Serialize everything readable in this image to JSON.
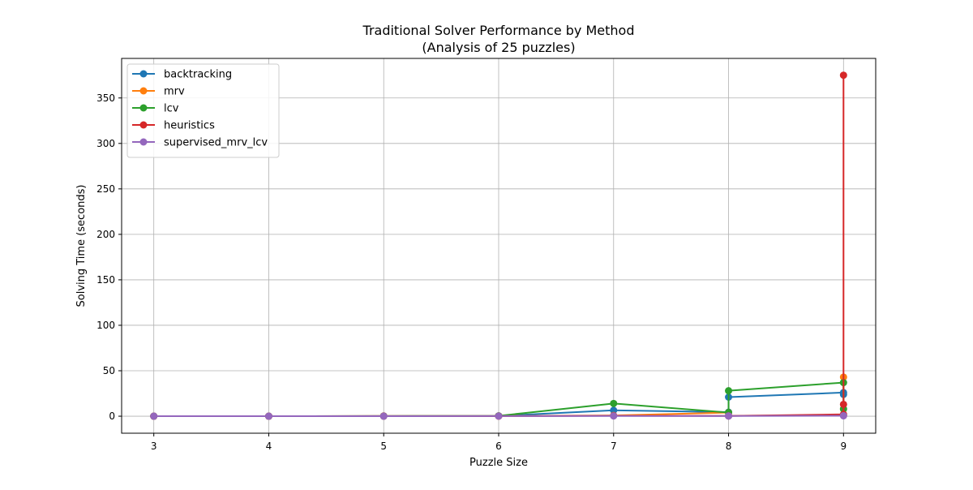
{
  "chart_data": {
    "type": "line",
    "title": "Traditional Solver Performance by Method",
    "subtitle": "(Analysis of 25 puzzles)",
    "xlabel": "Puzzle Size",
    "ylabel": "Solving Time (seconds)",
    "xlim": [
      2.72,
      9.28
    ],
    "ylim": [
      -18.7,
      393.5
    ],
    "xticks": [
      3,
      4,
      5,
      6,
      7,
      8,
      9
    ],
    "yticks": [
      0,
      50,
      100,
      150,
      200,
      250,
      300,
      350
    ],
    "grid": true,
    "legend_position": "top-left",
    "series": [
      {
        "name": "backtracking",
        "color": "#1f77b4",
        "points": [
          [
            3,
            0.0
          ],
          [
            4,
            0.0
          ],
          [
            5,
            0.1
          ],
          [
            6,
            0.3
          ],
          [
            7,
            6.5
          ],
          [
            8,
            4.5
          ],
          [
            8,
            21.0
          ],
          [
            9,
            26.0
          ],
          [
            9,
            24.0
          ]
        ]
      },
      {
        "name": "mrv",
        "color": "#ff7f0e",
        "points": [
          [
            3,
            0.0
          ],
          [
            4,
            0.0
          ],
          [
            5,
            0.1
          ],
          [
            6,
            0.2
          ],
          [
            7,
            0.8
          ],
          [
            8,
            4.0
          ],
          [
            8,
            0.5
          ],
          [
            9,
            1.0
          ],
          [
            9,
            43.0
          ]
        ]
      },
      {
        "name": "lcv",
        "color": "#2ca02c",
        "points": [
          [
            3,
            0.0
          ],
          [
            4,
            0.0
          ],
          [
            5,
            0.2
          ],
          [
            6,
            0.4
          ],
          [
            7,
            14.0
          ],
          [
            8,
            4.0
          ],
          [
            8,
            28.0
          ],
          [
            9,
            37.0
          ],
          [
            9,
            8.0
          ]
        ]
      },
      {
        "name": "heuristics",
        "color": "#d62728",
        "points": [
          [
            3,
            0.0
          ],
          [
            4,
            0.0
          ],
          [
            5,
            0.1
          ],
          [
            6,
            0.1
          ],
          [
            7,
            0.5
          ],
          [
            8,
            0.3
          ],
          [
            8,
            0.3
          ],
          [
            9,
            2.0
          ],
          [
            9,
            375.0
          ],
          [
            9,
            13.0
          ]
        ]
      },
      {
        "name": "supervised_mrv_lcv",
        "color": "#9467bd",
        "points": [
          [
            3,
            0.0
          ],
          [
            4,
            0.0
          ],
          [
            5,
            0.0
          ],
          [
            6,
            0.1
          ],
          [
            7,
            0.3
          ],
          [
            8,
            0.2
          ],
          [
            8,
            0.3
          ],
          [
            9,
            0.5
          ],
          [
            9,
            0.5
          ]
        ]
      }
    ]
  }
}
